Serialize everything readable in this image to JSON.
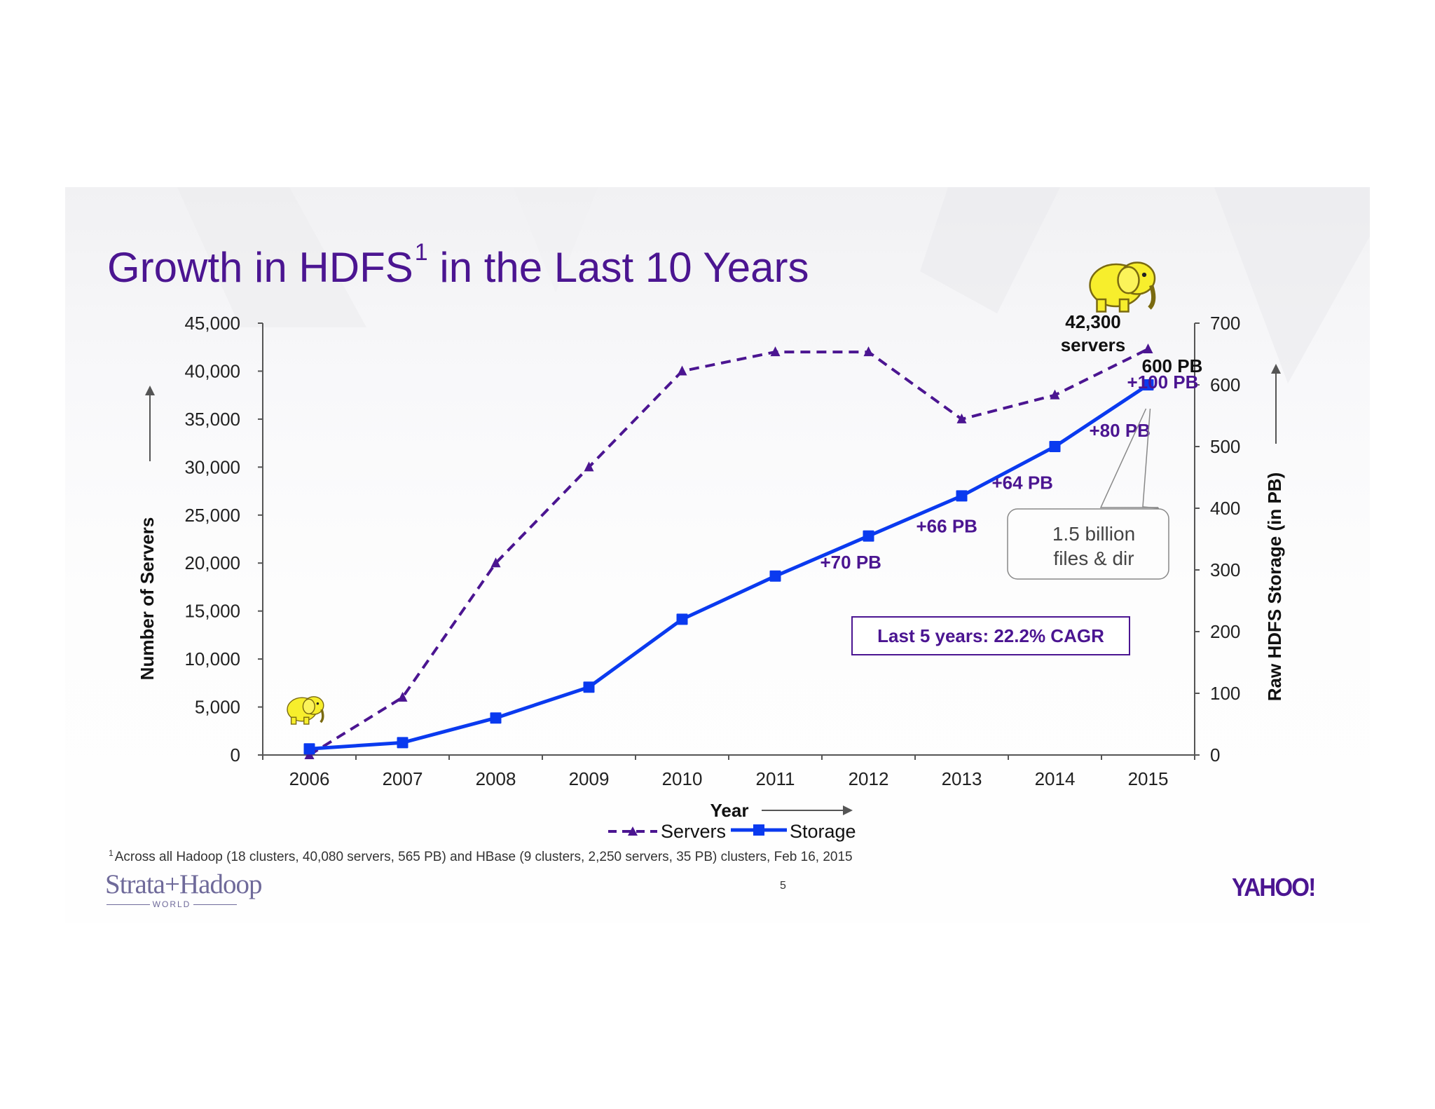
{
  "slide": {
    "title_main": "Growth in HDFS",
    "title_sup": "1",
    "title_rest": " in the Last 10 Years",
    "footnote_mark": "1",
    "footnote": "Across all Hadoop (18 clusters, 40,080 servers, 565 PB) and HBase (9 clusters, 2,250 servers, 35 PB) clusters, Feb 16, 2015",
    "page_number": "5",
    "logo_left_main": "Strata+Hadoop",
    "logo_left_sub": "WORLD",
    "logo_right": "YAHOO!"
  },
  "colors": {
    "title": "#4b1591",
    "servers": "#4b1591",
    "storage": "#0a3aef",
    "axis": "#555555",
    "annotation": "#4b1591",
    "elephant": "#f7ee2c"
  },
  "chart_data": {
    "type": "line",
    "title": "Growth in HDFS in the Last 10 Years",
    "xlabel": "Year",
    "categories": [
      "2006",
      "2007",
      "2008",
      "2009",
      "2010",
      "2011",
      "2012",
      "2013",
      "2014",
      "2015"
    ],
    "series": [
      {
        "name": "Servers",
        "axis": "left",
        "style": "dashed-triangle",
        "values": [
          0,
          6000,
          20000,
          30000,
          40000,
          42000,
          42000,
          35000,
          37500,
          42300
        ]
      },
      {
        "name": "Storage",
        "axis": "right",
        "style": "solid-square",
        "values": [
          10,
          20,
          60,
          110,
          220,
          290,
          355,
          420,
          500,
          600
        ]
      }
    ],
    "y_left": {
      "label": "Number of Servers",
      "range": [
        0,
        45000
      ],
      "ticks": [
        "0",
        "5,000",
        "10,000",
        "15,000",
        "20,000",
        "25,000",
        "30,000",
        "35,000",
        "40,000",
        "45,000"
      ]
    },
    "y_right": {
      "label": "Raw HDFS Storage (in PB)",
      "range": [
        0,
        700
      ],
      "ticks": [
        "0",
        "100",
        "200",
        "300",
        "400",
        "500",
        "600",
        "700"
      ]
    },
    "annotations": {
      "increments": [
        {
          "year": "2011",
          "text": "+70 PB"
        },
        {
          "year": "2012",
          "text": "+66 PB"
        },
        {
          "year": "2013",
          "text": "+64 PB"
        },
        {
          "year": "2014",
          "text": "+80 PB"
        },
        {
          "year": "2015",
          "text": "+100 PB"
        }
      ],
      "servers_callout": [
        "42,300",
        "servers"
      ],
      "storage_callout": "600 PB",
      "files_callout": [
        "1.5 billion",
        "files & dir"
      ],
      "cagr": "Last 5 years: 22.2% CAGR"
    },
    "legend": {
      "position": "bottom-center",
      "entries": [
        "Servers",
        "Storage"
      ]
    }
  }
}
